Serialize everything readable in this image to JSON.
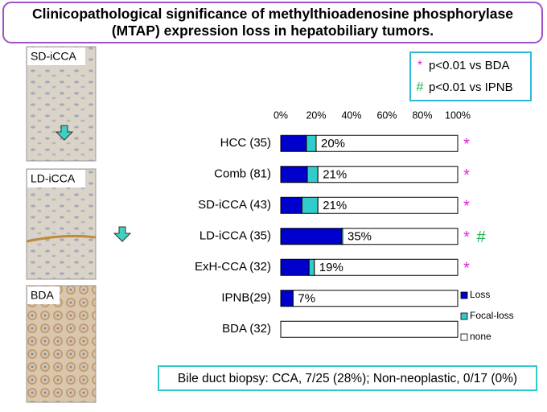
{
  "chart_data": {
    "type": "stacked-bar-horizontal",
    "title": "Clinicopathological significance of methylthioadenosine phosphorylase (MTAP) expression loss in hepatobiliary tumors.",
    "categories": [
      "HCC (35)",
      "Comb (81)",
      "SD-iCCA (43)",
      "LD-iCCA (35)",
      "ExH-CCA (32)",
      "IPNB(29)",
      "BDA (32)"
    ],
    "series": [
      {
        "name": "Loss",
        "color": "#0000cc",
        "values": [
          14.5,
          15,
          12,
          34.3,
          16,
          7,
          0
        ]
      },
      {
        "name": "Focal-loss",
        "color": "#33cccc",
        "values": [
          5.5,
          6,
          9,
          0.7,
          3,
          0,
          0
        ]
      },
      {
        "name": "none",
        "color": "#ffffff",
        "values": [
          80,
          79,
          79,
          65,
          81,
          93,
          100
        ]
      }
    ],
    "annotations": [
      "20%",
      "21%",
      "21%",
      "35%",
      "19%",
      "7%",
      null
    ],
    "xlim": [
      0,
      100
    ],
    "xticks": [
      {
        "value": 0,
        "label": "0%"
      },
      {
        "value": 20,
        "label": "20%"
      },
      {
        "value": 40,
        "label": "40%"
      },
      {
        "value": 60,
        "label": "60%"
      },
      {
        "value": 80,
        "label": "80%"
      },
      {
        "value": 100,
        "label": "100%"
      }
    ],
    "significance_legend": [
      {
        "symbol": "*",
        "text": "p<0.01 vs BDA",
        "color": "#e020e0"
      },
      {
        "symbol": "#",
        "text": "p<0.01 vs IPNB",
        "color": "#20b050"
      }
    ],
    "significance": [
      [
        0
      ],
      [
        0
      ],
      [
        0
      ],
      [
        0,
        1
      ],
      [
        0
      ],
      [],
      []
    ],
    "legend": "right"
  },
  "panels": [
    "SD-iCCA",
    "LD-iCCA",
    "BDA"
  ],
  "note": "Bile duct biopsy: CCA, 7/25 (28%); Non-neoplastic, 0/17 (0%)"
}
